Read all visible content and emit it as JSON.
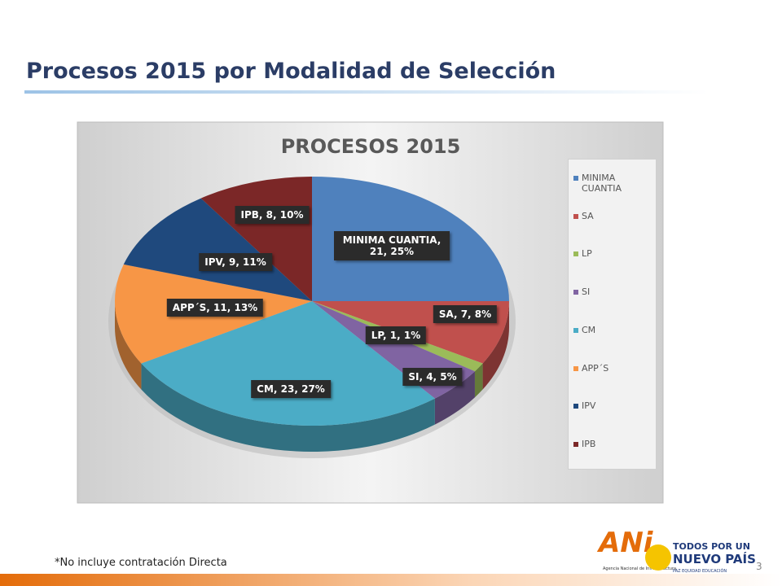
{
  "slide": {
    "title": "Procesos 2015 por Modalidad de Selección",
    "footnote": "*No incluye  contratación Directa",
    "page_number": "3",
    "logos": {
      "ani": "ANi",
      "ani_caption": "Agencia Nacional de Infraestructura",
      "line1": "TODOS POR UN",
      "line2": "NUEVO PAÍS",
      "line3": "PAZ  EQUIDAD  EDUCACIÓN"
    }
  },
  "chart_data": {
    "type": "pie",
    "title": "PROCESOS 2015",
    "categories": [
      "MINIMA CUANTIA",
      "SA",
      "LP",
      "SI",
      "CM",
      "APP´S",
      "IPV",
      "IPB"
    ],
    "values": [
      21,
      7,
      1,
      4,
      23,
      11,
      9,
      8
    ],
    "value_labels": [
      "MINIMA CUANTIA, 21, 25%",
      "SA, 7, 8%",
      "LP, 1, 1%",
      "SI, 4, 5%",
      "CM, 23, 27%",
      "APP´S, 11, 13%",
      "IPV, 9, 11%",
      "IPB, 8, 10%"
    ],
    "colors": [
      "#4f81bd",
      "#c0504d",
      "#9bbb59",
      "#8064a2",
      "#4bacc6",
      "#f79646",
      "#1f497d",
      "#7b2727"
    ],
    "legend": "right"
  }
}
